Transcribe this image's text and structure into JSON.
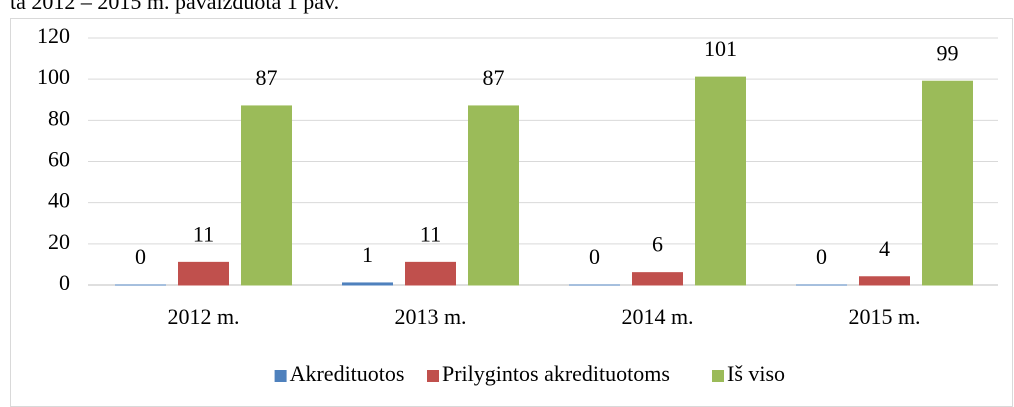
{
  "chart_data": {
    "type": "bar",
    "caption": "ta 2012 – 2015 m. pavaizduota 1 pav.",
    "categories": [
      "2012 m.",
      "2013 m.",
      "2014 m.",
      "2015 m."
    ],
    "series": [
      {
        "name": "Akredituotos",
        "color": "#4f81bd",
        "values": [
          0,
          1,
          0,
          0
        ]
      },
      {
        "name": "Prilygintos akredituotoms",
        "color": "#c0504d",
        "values": [
          11,
          11,
          6,
          4
        ]
      },
      {
        "name": "Iš viso",
        "color": "#9bbb59",
        "values": [
          87,
          87,
          101,
          99
        ]
      }
    ],
    "ylim": [
      0,
      120
    ],
    "yticks": [
      0,
      20,
      40,
      60,
      80,
      100,
      120
    ],
    "grid": true,
    "legend": "bottom"
  }
}
